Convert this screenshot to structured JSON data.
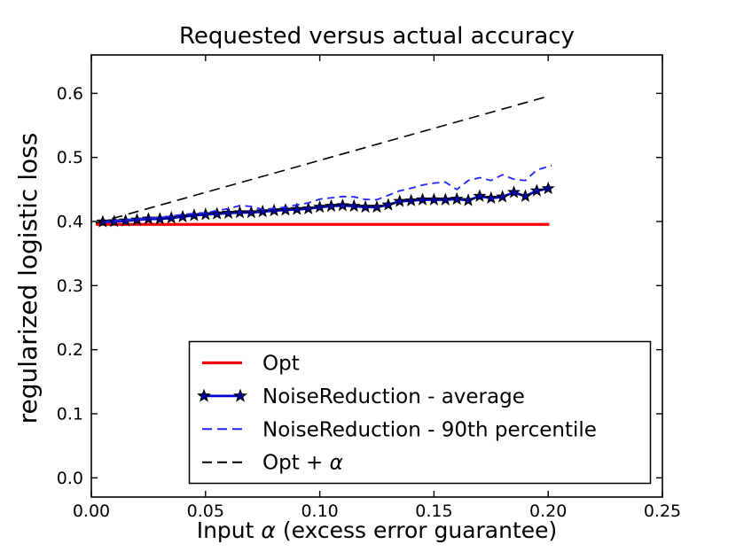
{
  "chart_data": {
    "type": "line",
    "title": "Requested versus actual accuracy",
    "xlabel": "Input α (excess error guarantee)",
    "xlabel_parts": [
      {
        "t": "Input ",
        "italic": false
      },
      {
        "t": "α",
        "italic": true
      },
      {
        "t": " (excess error guarantee)",
        "italic": false
      }
    ],
    "ylabel": "regularized logistic loss",
    "xlim": [
      0,
      0.25
    ],
    "ylim": [
      -0.03,
      0.66
    ],
    "grid": false,
    "x_ticks": [
      {
        "v": 0.0,
        "label": "0.00"
      },
      {
        "v": 0.05,
        "label": "0.05"
      },
      {
        "v": 0.1,
        "label": "0.10"
      },
      {
        "v": 0.15,
        "label": "0.15"
      },
      {
        "v": 0.2,
        "label": "0.20"
      },
      {
        "v": 0.25,
        "label": "0.25"
      }
    ],
    "y_ticks": [
      {
        "v": 0.0,
        "label": "0.0"
      },
      {
        "v": 0.1,
        "label": "0.1"
      },
      {
        "v": 0.2,
        "label": "0.2"
      },
      {
        "v": 0.3,
        "label": "0.3"
      },
      {
        "v": 0.4,
        "label": "0.4"
      },
      {
        "v": 0.5,
        "label": "0.5"
      },
      {
        "v": 0.6,
        "label": "0.6"
      }
    ],
    "legend": {
      "position": "inside-lower-right",
      "order": [
        0,
        1,
        2,
        3
      ]
    },
    "series": [
      {
        "name": "Opt",
        "label_parts": [
          {
            "t": "Opt",
            "italic": false
          }
        ],
        "color": "#ff0000",
        "line": "solid",
        "width": 3.2,
        "marker": null,
        "x": [
          0.002,
          0.2005
        ],
        "y": [
          0.3955,
          0.3955
        ]
      },
      {
        "name": "NoiseReduction - average",
        "label_parts": [
          {
            "t": "NoiseReduction - average",
            "italic": false
          }
        ],
        "color": "#0000dd",
        "line": "solid",
        "width": 2.8,
        "marker": "star",
        "marker_fill": "#0000b3",
        "marker_edge": "#000000",
        "x": [
          0.005,
          0.01,
          0.015,
          0.02,
          0.025,
          0.03,
          0.035,
          0.04,
          0.045,
          0.05,
          0.055,
          0.06,
          0.065,
          0.07,
          0.075,
          0.08,
          0.085,
          0.09,
          0.095,
          0.1,
          0.105,
          0.11,
          0.115,
          0.12,
          0.125,
          0.13,
          0.135,
          0.14,
          0.145,
          0.15,
          0.155,
          0.16,
          0.165,
          0.17,
          0.175,
          0.18,
          0.185,
          0.19,
          0.195,
          0.2
        ],
        "y": [
          0.3995,
          0.4,
          0.401,
          0.4025,
          0.404,
          0.404,
          0.4055,
          0.4075,
          0.4095,
          0.411,
          0.412,
          0.413,
          0.414,
          0.414,
          0.4155,
          0.417,
          0.418,
          0.419,
          0.42,
          0.4225,
          0.424,
          0.425,
          0.424,
          0.4225,
          0.4225,
          0.426,
          0.4315,
          0.4325,
          0.434,
          0.434,
          0.434,
          0.435,
          0.433,
          0.4395,
          0.4365,
          0.4385,
          0.4455,
          0.4395,
          0.448,
          0.4515
        ]
      },
      {
        "name": "NoiseReduction - 90th percentile",
        "label_parts": [
          {
            "t": "NoiseReduction - 90th percentile",
            "italic": false
          }
        ],
        "color": "#2222ff",
        "line": "dashed",
        "dash": "8,5.5",
        "width": 1.8,
        "marker": null,
        "x": [
          0.005,
          0.01,
          0.015,
          0.02,
          0.025,
          0.03,
          0.035,
          0.04,
          0.045,
          0.05,
          0.055,
          0.06,
          0.065,
          0.07,
          0.075,
          0.08,
          0.085,
          0.09,
          0.095,
          0.1,
          0.105,
          0.11,
          0.115,
          0.12,
          0.125,
          0.13,
          0.135,
          0.14,
          0.145,
          0.15,
          0.155,
          0.16,
          0.165,
          0.17,
          0.175,
          0.18,
          0.185,
          0.19,
          0.195,
          0.2015
        ],
        "y": [
          0.4,
          0.401,
          0.4025,
          0.404,
          0.405,
          0.406,
          0.4085,
          0.411,
          0.4125,
          0.4135,
          0.417,
          0.42,
          0.425,
          0.4235,
          0.419,
          0.4205,
          0.4225,
          0.426,
          0.429,
          0.435,
          0.437,
          0.439,
          0.4385,
          0.4345,
          0.434,
          0.441,
          0.448,
          0.452,
          0.457,
          0.46,
          0.4615,
          0.45,
          0.464,
          0.4685,
          0.464,
          0.473,
          0.466,
          0.464,
          0.4805,
          0.4875
        ]
      },
      {
        "name": "Opt + α",
        "label_parts": [
          {
            "t": "Opt + ",
            "italic": false
          },
          {
            "t": "α",
            "italic": true
          }
        ],
        "color": "#000000",
        "line": "dashed",
        "dash": "12,7",
        "width": 1.6,
        "marker": null,
        "x": [
          0.002,
          0.2
        ],
        "y": [
          0.3975,
          0.5955
        ]
      }
    ]
  }
}
